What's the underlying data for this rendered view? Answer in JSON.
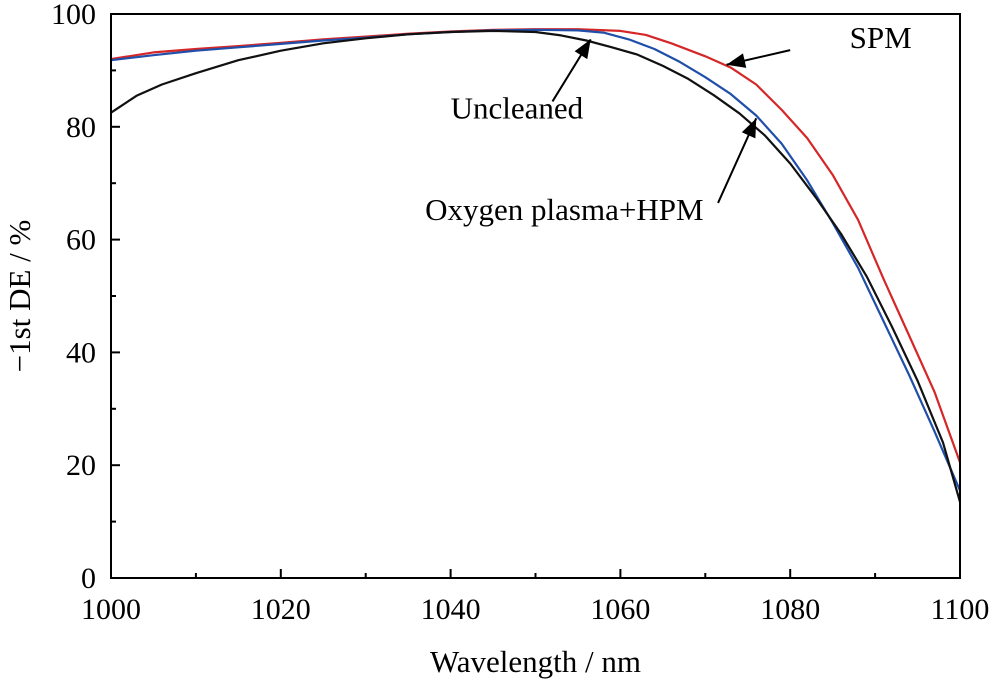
{
  "chart_data": {
    "type": "line",
    "title": "",
    "xlabel": "Wavelength / nm",
    "ylabel": "−1st DE / %",
    "xlim": [
      1000,
      1100
    ],
    "ylim": [
      0,
      100
    ],
    "x_ticks": [
      "1000",
      "1020",
      "1040",
      "1060",
      "1080",
      "1100"
    ],
    "y_ticks": [
      "0",
      "20",
      "40",
      "60",
      "80",
      "100"
    ],
    "grid": false,
    "series": [
      {
        "name": "SPM",
        "color": "#d62728",
        "points": [
          [
            1000,
            92
          ],
          [
            1005,
            93.2
          ],
          [
            1010,
            93.8
          ],
          [
            1015,
            94.3
          ],
          [
            1020,
            94.9
          ],
          [
            1025,
            95.5
          ],
          [
            1030,
            96.0
          ],
          [
            1035,
            96.5
          ],
          [
            1040,
            96.9
          ],
          [
            1045,
            97.2
          ],
          [
            1050,
            97.3
          ],
          [
            1055,
            97.3
          ],
          [
            1060,
            97.0
          ],
          [
            1063,
            96.3
          ],
          [
            1066,
            94.8
          ],
          [
            1070,
            92.5
          ],
          [
            1073,
            90.5
          ],
          [
            1076,
            87.5
          ],
          [
            1079,
            83
          ],
          [
            1082,
            78
          ],
          [
            1085,
            71.5
          ],
          [
            1088,
            63.5
          ],
          [
            1091,
            53
          ],
          [
            1094,
            43
          ],
          [
            1097,
            33
          ],
          [
            1100,
            20.5
          ]
        ]
      },
      {
        "name": "Oxygen plasma+HPM",
        "color": "#1f4fa8",
        "points": [
          [
            1000,
            91.8
          ],
          [
            1005,
            92.7
          ],
          [
            1010,
            93.5
          ],
          [
            1015,
            94.1
          ],
          [
            1020,
            94.7
          ],
          [
            1025,
            95.3
          ],
          [
            1030,
            95.8
          ],
          [
            1035,
            96.4
          ],
          [
            1040,
            96.8
          ],
          [
            1045,
            97.1
          ],
          [
            1050,
            97.2
          ],
          [
            1055,
            97.1
          ],
          [
            1058,
            96.7
          ],
          [
            1061,
            95.5
          ],
          [
            1064,
            93.8
          ],
          [
            1067,
            91.5
          ],
          [
            1070,
            88.8
          ],
          [
            1073,
            85.8
          ],
          [
            1076,
            82
          ],
          [
            1079,
            77
          ],
          [
            1082,
            70.5
          ],
          [
            1085,
            63
          ],
          [
            1088,
            55
          ],
          [
            1091,
            45.5
          ],
          [
            1094,
            36
          ],
          [
            1097,
            26
          ],
          [
            1100,
            15.5
          ]
        ]
      },
      {
        "name": "Uncleaned",
        "color": "#111111",
        "points": [
          [
            1000,
            82.5
          ],
          [
            1003,
            85.5
          ],
          [
            1006,
            87.5
          ],
          [
            1010,
            89.5
          ],
          [
            1015,
            91.8
          ],
          [
            1020,
            93.5
          ],
          [
            1025,
            94.8
          ],
          [
            1030,
            95.7
          ],
          [
            1035,
            96.4
          ],
          [
            1040,
            96.8
          ],
          [
            1045,
            97.0
          ],
          [
            1050,
            96.8
          ],
          [
            1053,
            96.2
          ],
          [
            1056,
            95.3
          ],
          [
            1059,
            94.1
          ],
          [
            1062,
            92.8
          ],
          [
            1065,
            90.8
          ],
          [
            1068,
            88.5
          ],
          [
            1071,
            85.6
          ],
          [
            1074,
            82.4
          ],
          [
            1077,
            78.5
          ],
          [
            1080,
            73.5
          ],
          [
            1083,
            67.5
          ],
          [
            1086,
            61
          ],
          [
            1089,
            53.5
          ],
          [
            1092,
            44.5
          ],
          [
            1095,
            35
          ],
          [
            1098,
            24
          ],
          [
            1100,
            13.5
          ]
        ]
      }
    ],
    "annotations": [
      {
        "text": "SPM",
        "label_at": [
          1087,
          94
        ],
        "arrow_from": [
          1080,
          93.6
        ],
        "arrow_to": [
          1072.5,
          91
        ]
      },
      {
        "text": "Uncleaned",
        "label_at": [
          1040,
          81.5
        ],
        "arrow_from": [
          1052,
          84.5
        ],
        "arrow_to": [
          1056.5,
          95.5
        ]
      },
      {
        "text": "Oxygen plasma+HPM",
        "label_at": [
          1037,
          63.5
        ],
        "arrow_from": [
          1071.5,
          66.5
        ],
        "arrow_to": [
          1076,
          81.5
        ]
      }
    ]
  }
}
